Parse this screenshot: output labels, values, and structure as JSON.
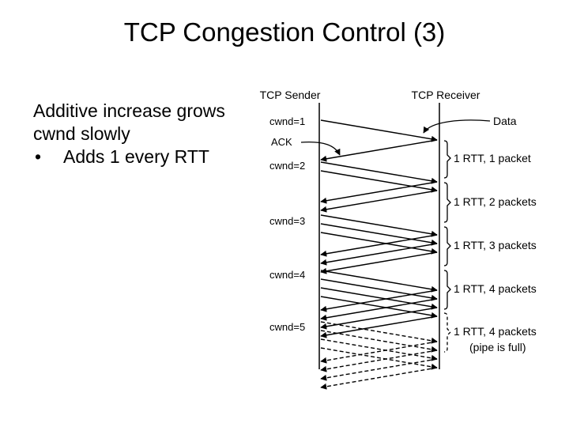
{
  "title": "TCP Congestion Control (3)",
  "text": {
    "heading": "Additive increase grows cwnd slowly",
    "bullets": [
      "Adds 1 every RTT"
    ]
  },
  "diagram": {
    "sender_label": "TCP Sender",
    "receiver_label": "TCP Receiver",
    "data_label": "Data",
    "ack_label": "ACK",
    "cwnd_labels": [
      "cwnd=1",
      "cwnd=2",
      "cwnd=3",
      "cwnd=4",
      "cwnd=5"
    ],
    "rtt_labels": [
      {
        "text": "1 RTT, 1 packet"
      },
      {
        "text": "1 RTT, 2 packets"
      },
      {
        "text": "1 RTT, 3 packets"
      },
      {
        "text": "1 RTT, 4 packets"
      },
      {
        "text": "1 RTT, 4 packets",
        "note": "(pipe is full)"
      }
    ],
    "round_packets": [
      1,
      2,
      3,
      4,
      4
    ],
    "last_round_dashed": true
  }
}
